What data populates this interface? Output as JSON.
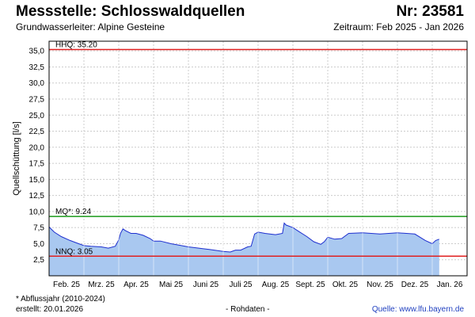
{
  "header": {
    "title": "Messstelle: Schlosswaldquellen",
    "number": "Nr: 23581",
    "subtitle": "Grundwasserleiter: Alpine Gesteine",
    "period": "Zeitraum: Feb 2025 - Jan 2026"
  },
  "footer": {
    "footnote": "* Abflussjahr (2010-2024)",
    "created": "erstellt:  20.01.2026",
    "raw": "- Rohdaten -",
    "source": "Quelle: www.lfu.bayern.de"
  },
  "colors": {
    "fill": "#a9c8f0",
    "line": "#1d2fcf",
    "hhq": "#e02020",
    "mq": "#1a9a1a",
    "nnq": "#e02020",
    "grid": "#cccccc"
  },
  "chart_data": {
    "type": "area",
    "ylabel": "Quellschüttung [l/s]",
    "ylim": [
      0,
      36.5
    ],
    "yticks": [
      "2,5",
      "5,0",
      "7,5",
      "10,0",
      "12,5",
      "15,0",
      "17,5",
      "20,0",
      "22,5",
      "25,0",
      "27,5",
      "30,0",
      "32,5",
      "35,0"
    ],
    "ytick_values": [
      2.5,
      5,
      7.5,
      10,
      12.5,
      15,
      17.5,
      20,
      22.5,
      25,
      27.5,
      30,
      32.5,
      35
    ],
    "months": [
      "Feb. 25",
      "Mrz. 25",
      "Apr. 25",
      "Mai 25",
      "Juni 25",
      "Juli 25",
      "Aug. 25",
      "Sept. 25",
      "Okt. 25",
      "Nov. 25",
      "Dez. 25",
      "Jan. 26"
    ],
    "reference_lines": [
      {
        "label": "HHQ: 35.20",
        "value": 35.2,
        "color": "#e02020"
      },
      {
        "label": "MQ*: 9.24",
        "value": 9.24,
        "color": "#1a9a1a"
      },
      {
        "label": "NNQ: 3.05",
        "value": 3.05,
        "color": "#e02020"
      }
    ],
    "series": [
      {
        "x": [
          0,
          0.15,
          0.35,
          0.6,
          0.85,
          1.0,
          1.2,
          1.5,
          1.7,
          1.9,
          2.0,
          2.05,
          2.12,
          2.2,
          2.35,
          2.5,
          2.7,
          2.9,
          3.0,
          3.2,
          3.5,
          3.8,
          4.0,
          4.3,
          4.6,
          5.0,
          5.2,
          5.35,
          5.5,
          5.7,
          5.8,
          5.9,
          6.0,
          6.2,
          6.5,
          6.7,
          6.75,
          6.8,
          7.0,
          7.2,
          7.4,
          7.6,
          7.8,
          7.9,
          8.0,
          8.2,
          8.4,
          8.6,
          9.0,
          9.5,
          10.0,
          10.5,
          10.8,
          11.0,
          11.1,
          11.2
        ],
        "values": [
          7.6,
          6.8,
          6.1,
          5.5,
          5.0,
          4.7,
          4.6,
          4.5,
          4.3,
          4.6,
          5.6,
          6.6,
          7.3,
          7.0,
          6.6,
          6.6,
          6.3,
          5.8,
          5.4,
          5.4,
          5.0,
          4.7,
          4.5,
          4.3,
          4.1,
          3.8,
          3.7,
          4.0,
          4.0,
          4.5,
          4.6,
          6.5,
          6.8,
          6.6,
          6.4,
          6.6,
          8.2,
          7.9,
          7.5,
          6.8,
          6.1,
          5.3,
          4.9,
          5.3,
          6.0,
          5.7,
          5.8,
          6.6,
          6.7,
          6.5,
          6.7,
          6.5,
          5.5,
          5.0,
          5.5,
          5.7
        ]
      }
    ]
  }
}
